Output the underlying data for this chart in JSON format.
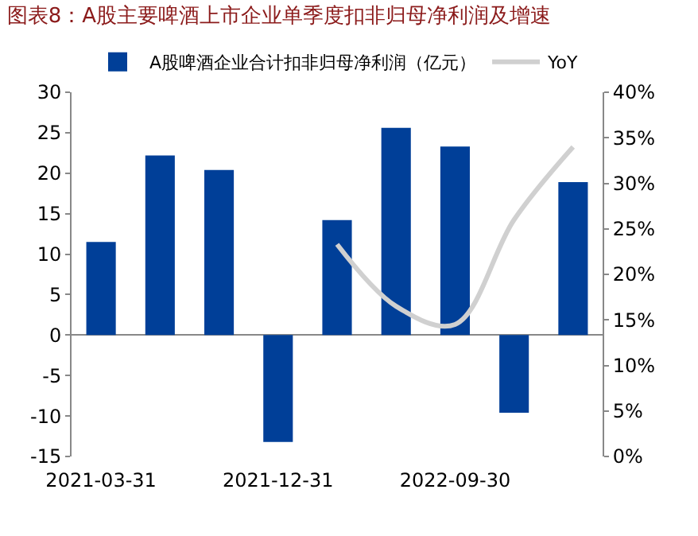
{
  "chart_data": {
    "type": "bar",
    "title": "图表8：A股主要啤酒上市企业单季度扣非归母净利润及增速",
    "categories": [
      "2021-03-31",
      null,
      null,
      "2021-12-31",
      null,
      null,
      "2022-09-30",
      null,
      null
    ],
    "series": [
      {
        "name": "A股啤酒企业合计扣非归母净利润（亿元）",
        "color": "#003f98",
        "values": [
          11.5,
          22.2,
          20.4,
          -13.2,
          14.2,
          25.6,
          23.3,
          -9.6,
          18.9
        ]
      },
      {
        "name": "YoY",
        "type": "line",
        "axis": "y2",
        "color": "#d0d0d0",
        "values": [
          null,
          null,
          null,
          null,
          0.233,
          0.165,
          0.145,
          0.26,
          0.34
        ]
      }
    ],
    "ylim": [
      -15,
      30
    ],
    "yticks": [
      -15,
      -10,
      -5,
      0,
      5,
      10,
      15,
      20,
      25,
      30
    ],
    "y2lim": [
      0,
      0.4
    ],
    "y2ticks": [
      {
        "value": 0,
        "label": "0%"
      },
      {
        "value": 0.05,
        "label": "5%"
      },
      {
        "value": 0.1,
        "label": "10%"
      },
      {
        "value": 0.15,
        "label": "15%"
      },
      {
        "value": 0.2,
        "label": "20%"
      },
      {
        "value": 0.25,
        "label": "25%"
      },
      {
        "value": 0.3,
        "label": "30%"
      },
      {
        "value": 0.35,
        "label": "35%"
      },
      {
        "value": 0.4,
        "label": "40%"
      }
    ],
    "legend": "top",
    "marker": "none"
  }
}
